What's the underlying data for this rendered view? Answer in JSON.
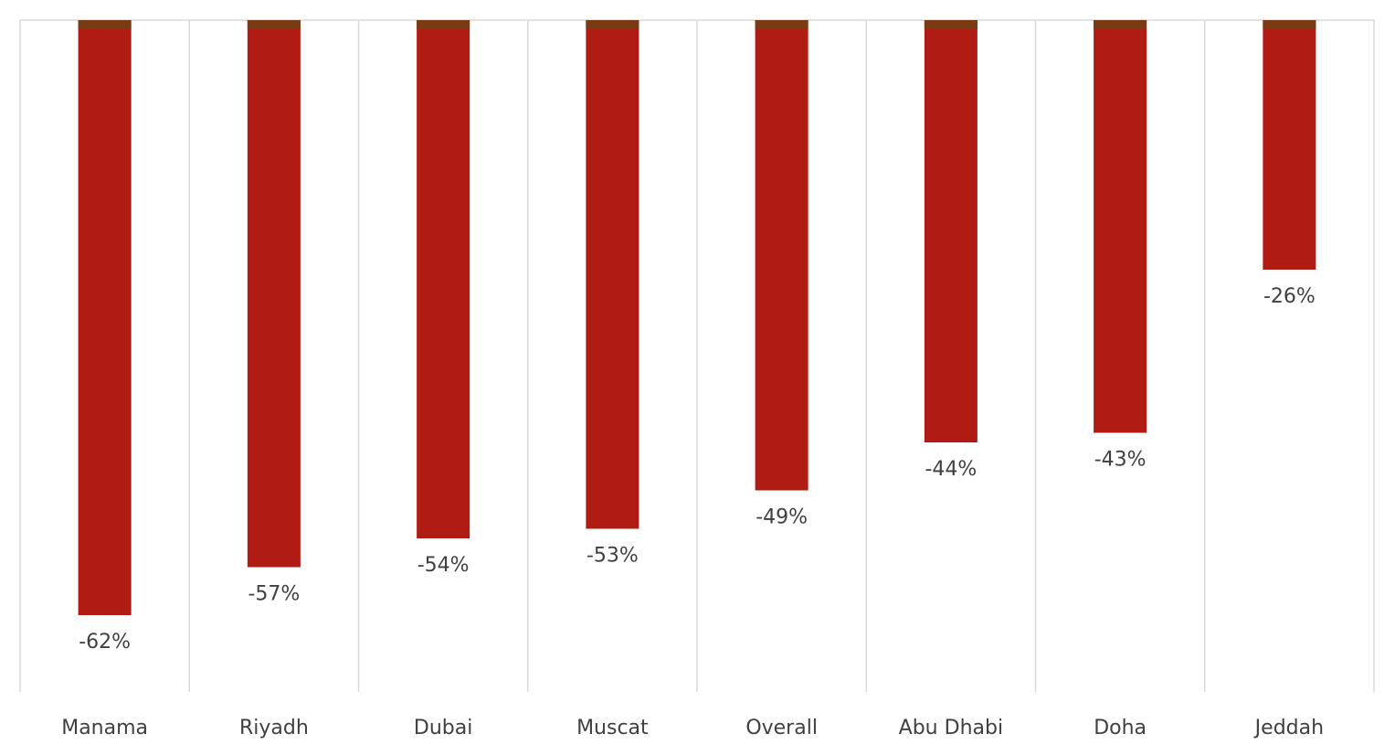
{
  "chart_data": {
    "type": "bar",
    "categories": [
      "Manama",
      "Riyadh",
      "Dubai",
      "Muscat",
      "Overall",
      "Abu Dhabi",
      "Doha",
      "Jeddah"
    ],
    "values": [
      -62,
      -57,
      -54,
      -53,
      -49,
      -44,
      -43,
      -26
    ],
    "value_labels": [
      "-62%",
      "-57%",
      "-54%",
      "-53%",
      "-49%",
      "-44%",
      "-43%",
      "-26%"
    ],
    "color": "#b01c13",
    "ylim": [
      -70,
      0
    ]
  }
}
